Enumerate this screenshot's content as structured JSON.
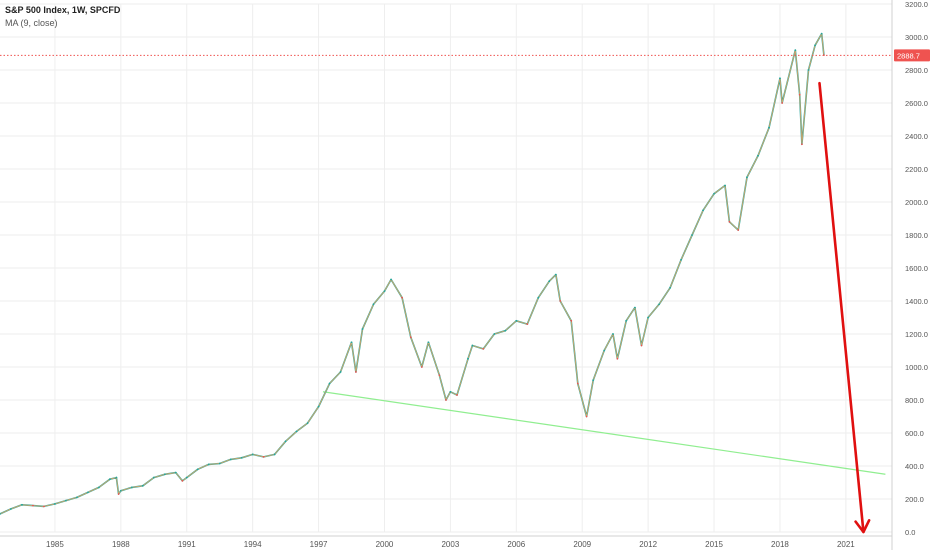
{
  "header": {
    "title": "S&P 500 Index, 1W, SPCFD",
    "indicator": "MA (9, close)"
  },
  "colors": {
    "background": "#ffffff",
    "grid": "#eeeeee",
    "price_up": "#26a69a",
    "price_down": "#ef5350",
    "ma_line": "#f4a460",
    "current_price_line": "#ef5350",
    "trendline": "#90ee90",
    "arrow": "#e01010",
    "axis_text": "#555555"
  },
  "icons": {
    "arrow": "down-arrow-icon"
  },
  "chart_data": {
    "type": "line",
    "title": "S&P 500 Index, 1W, SPCFD",
    "xlabel": "",
    "ylabel": "",
    "x_tick_labels": [
      "1985",
      "1988",
      "1991",
      "1994",
      "1997",
      "2000",
      "2003",
      "2006",
      "2009",
      "2012",
      "2015",
      "2018",
      "2021"
    ],
    "y_tick_labels": [
      "0.0",
      "200.0",
      "400.0",
      "600.0",
      "800.0",
      "1000.0",
      "1200.0",
      "1400.0",
      "1600.0",
      "1800.0",
      "2000.0",
      "2200.0",
      "2400.0",
      "2600.0",
      "2800.0",
      "3000.0",
      "3200.0"
    ],
    "xlim": [
      1982.5,
      2023.1
    ],
    "ylim": [
      0,
      3200
    ],
    "grid": true,
    "current_price": 2888.7,
    "current_price_label": "2888.7",
    "series": [
      {
        "points": [
          [
            1982.5,
            110
          ],
          [
            1983.0,
            140
          ],
          [
            1983.5,
            165
          ],
          [
            1984.0,
            160
          ],
          [
            1984.5,
            155
          ],
          [
            1985.0,
            170
          ],
          [
            1985.5,
            190
          ],
          [
            1986.0,
            210
          ],
          [
            1986.5,
            240
          ],
          [
            1987.0,
            270
          ],
          [
            1987.5,
            320
          ],
          [
            1987.8,
            330
          ],
          [
            1987.9,
            230
          ],
          [
            1988.0,
            250
          ],
          [
            1988.5,
            270
          ],
          [
            1989.0,
            280
          ],
          [
            1989.5,
            330
          ],
          [
            1990.0,
            350
          ],
          [
            1990.5,
            360
          ],
          [
            1990.8,
            310
          ],
          [
            1991.0,
            330
          ],
          [
            1991.5,
            380
          ],
          [
            1992.0,
            410
          ],
          [
            1992.5,
            415
          ],
          [
            1993.0,
            440
          ],
          [
            1993.5,
            450
          ],
          [
            1994.0,
            470
          ],
          [
            1994.5,
            455
          ],
          [
            1995.0,
            470
          ],
          [
            1995.5,
            550
          ],
          [
            1996.0,
            610
          ],
          [
            1996.5,
            660
          ],
          [
            1997.0,
            760
          ],
          [
            1997.5,
            900
          ],
          [
            1998.0,
            970
          ],
          [
            1998.5,
            1150
          ],
          [
            1998.7,
            970
          ],
          [
            1999.0,
            1230
          ],
          [
            1999.5,
            1380
          ],
          [
            2000.0,
            1460
          ],
          [
            2000.3,
            1530
          ],
          [
            2000.8,
            1420
          ],
          [
            2001.2,
            1180
          ],
          [
            2001.7,
            1000
          ],
          [
            2002.0,
            1150
          ],
          [
            2002.5,
            950
          ],
          [
            2002.8,
            800
          ],
          [
            2003.0,
            850
          ],
          [
            2003.3,
            830
          ],
          [
            2003.8,
            1050
          ],
          [
            2004.0,
            1130
          ],
          [
            2004.5,
            1110
          ],
          [
            2005.0,
            1200
          ],
          [
            2005.5,
            1220
          ],
          [
            2006.0,
            1280
          ],
          [
            2006.5,
            1260
          ],
          [
            2007.0,
            1420
          ],
          [
            2007.5,
            1520
          ],
          [
            2007.8,
            1560
          ],
          [
            2008.0,
            1400
          ],
          [
            2008.5,
            1280
          ],
          [
            2008.8,
            900
          ],
          [
            2009.2,
            700
          ],
          [
            2009.5,
            920
          ],
          [
            2010.0,
            1100
          ],
          [
            2010.4,
            1200
          ],
          [
            2010.6,
            1050
          ],
          [
            2011.0,
            1280
          ],
          [
            2011.4,
            1360
          ],
          [
            2011.7,
            1130
          ],
          [
            2012.0,
            1300
          ],
          [
            2012.5,
            1380
          ],
          [
            2013.0,
            1480
          ],
          [
            2013.5,
            1650
          ],
          [
            2014.0,
            1800
          ],
          [
            2014.5,
            1950
          ],
          [
            2015.0,
            2050
          ],
          [
            2015.5,
            2100
          ],
          [
            2015.7,
            1880
          ],
          [
            2016.1,
            1830
          ],
          [
            2016.5,
            2150
          ],
          [
            2017.0,
            2280
          ],
          [
            2017.5,
            2450
          ],
          [
            2018.0,
            2750
          ],
          [
            2018.1,
            2600
          ],
          [
            2018.7,
            2920
          ],
          [
            2018.9,
            2650
          ],
          [
            2019.0,
            2350
          ],
          [
            2019.3,
            2800
          ],
          [
            2019.6,
            2950
          ],
          [
            2019.9,
            3020
          ],
          [
            2020.0,
            2890
          ]
        ]
      }
    ],
    "annotations": [
      {
        "type": "trendline",
        "from": [
          1997.2,
          850
        ],
        "to": [
          2022.8,
          350
        ]
      },
      {
        "type": "arrow",
        "from": [
          2019.8,
          2720
        ],
        "to": [
          2021.8,
          0
        ]
      }
    ]
  }
}
